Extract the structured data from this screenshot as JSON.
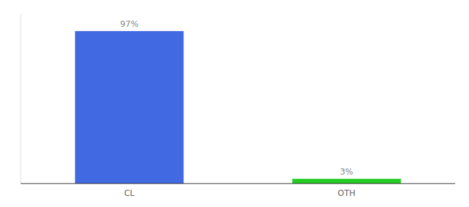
{
  "chart_data": {
    "type": "bar",
    "categories": [
      "CL",
      "OTH"
    ],
    "values": [
      97,
      3
    ],
    "value_labels": [
      "97%",
      "3%"
    ],
    "colors": [
      "#4169e1",
      "#22cc22"
    ],
    "ylim": [
      0,
      108
    ],
    "data_labels": true,
    "tick_labels": "x",
    "grid": false
  }
}
